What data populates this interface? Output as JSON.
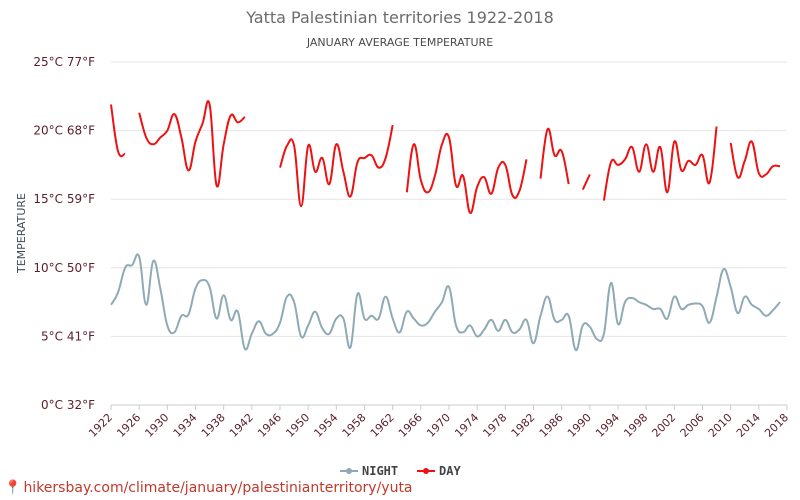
{
  "chart_data": {
    "type": "line",
    "title": "Yatta Palestinian territories 1922-2018",
    "subtitle": "JANUARY AVERAGE TEMPERATURE",
    "ylabel": "TEMPERATURE",
    "xlabel": "",
    "ylim": [
      0,
      25
    ],
    "xlim": [
      1922,
      2018
    ],
    "yticks": [
      "0°C 32°F",
      "5°C 41°F",
      "10°C 50°F",
      "15°C 59°F",
      "20°C 68°F",
      "25°C 77°F"
    ],
    "ytick_values": [
      0,
      5,
      10,
      15,
      20,
      25
    ],
    "xticks": [
      "1922",
      "1926",
      "1930",
      "1934",
      "1938",
      "1942",
      "1946",
      "1950",
      "1954",
      "1958",
      "1962",
      "1966",
      "1970",
      "1974",
      "1978",
      "1982",
      "1986",
      "1990",
      "1994",
      "1998",
      "2002",
      "2006",
      "2010",
      "2014",
      "2018"
    ],
    "legend": [
      "NIGHT",
      "DAY"
    ],
    "legend_position": "bottom-center",
    "series": [
      {
        "name": "NIGHT",
        "color": "#8eaab4",
        "segments": [
          [
            [
              1922,
              7.3
            ],
            [
              1923,
              8.2
            ],
            [
              1924,
              10.0
            ],
            [
              1925,
              10.2
            ],
            [
              1926,
              10.8
            ],
            [
              1927,
              7.3
            ],
            [
              1928,
              10.5
            ],
            [
              1929,
              8.5
            ],
            [
              1930,
              5.8
            ],
            [
              1931,
              5.3
            ],
            [
              1932,
              6.5
            ],
            [
              1933,
              6.6
            ],
            [
              1934,
              8.5
            ],
            [
              1935,
              9.1
            ],
            [
              1936,
              8.6
            ],
            [
              1937,
              6.3
            ],
            [
              1938,
              8.0
            ],
            [
              1939,
              6.2
            ],
            [
              1940,
              6.8
            ],
            [
              1941,
              4.1
            ],
            [
              1942,
              5.2
            ],
            [
              1943,
              6.1
            ],
            [
              1944,
              5.2
            ],
            [
              1945,
              5.2
            ],
            [
              1946,
              6.0
            ],
            [
              1947,
              7.9
            ],
            [
              1948,
              7.5
            ],
            [
              1949,
              5.0
            ],
            [
              1950,
              5.8
            ],
            [
              1951,
              6.8
            ],
            [
              1952,
              5.6
            ],
            [
              1953,
              5.2
            ],
            [
              1954,
              6.3
            ],
            [
              1955,
              6.3
            ],
            [
              1956,
              4.2
            ],
            [
              1957,
              8.1
            ],
            [
              1958,
              6.3
            ],
            [
              1959,
              6.5
            ],
            [
              1960,
              6.3
            ],
            [
              1961,
              7.9
            ],
            [
              1962,
              6.3
            ],
            [
              1963,
              5.3
            ],
            [
              1964,
              6.8
            ],
            [
              1965,
              6.3
            ],
            [
              1966,
              5.8
            ],
            [
              1967,
              6.0
            ],
            [
              1968,
              6.8
            ],
            [
              1969,
              7.5
            ],
            [
              1970,
              8.6
            ],
            [
              1971,
              5.8
            ],
            [
              1972,
              5.3
            ],
            [
              1973,
              5.8
            ],
            [
              1974,
              5.0
            ],
            [
              1975,
              5.5
            ],
            [
              1976,
              6.2
            ],
            [
              1977,
              5.4
            ],
            [
              1978,
              6.2
            ],
            [
              1979,
              5.3
            ],
            [
              1980,
              5.5
            ],
            [
              1981,
              6.2
            ],
            [
              1982,
              4.5
            ],
            [
              1983,
              6.5
            ],
            [
              1984,
              7.9
            ],
            [
              1985,
              6.2
            ],
            [
              1986,
              6.2
            ],
            [
              1987,
              6.5
            ],
            [
              1988,
              4.0
            ],
            [
              1989,
              5.8
            ],
            [
              1990,
              5.7
            ],
            [
              1991,
              4.8
            ],
            [
              1992,
              5.2
            ],
            [
              1993,
              8.9
            ],
            [
              1994,
              5.9
            ],
            [
              1995,
              7.5
            ],
            [
              1996,
              7.8
            ],
            [
              1997,
              7.5
            ],
            [
              1998,
              7.3
            ],
            [
              1999,
              7.0
            ],
            [
              2000,
              7.0
            ],
            [
              2001,
              6.3
            ],
            [
              2002,
              7.9
            ],
            [
              2003,
              7.0
            ],
            [
              2004,
              7.3
            ],
            [
              2005,
              7.4
            ],
            [
              2006,
              7.2
            ],
            [
              2007,
              6.0
            ],
            [
              2008,
              7.9
            ],
            [
              2009,
              9.9
            ],
            [
              2010,
              8.6
            ],
            [
              2011,
              6.7
            ],
            [
              2012,
              7.9
            ],
            [
              2013,
              7.3
            ],
            [
              2014,
              7.0
            ],
            [
              2015,
              6.5
            ],
            [
              2016,
              6.9
            ],
            [
              2017,
              7.5
            ]
          ]
        ]
      },
      {
        "name": "DAY",
        "color": "#ee1111",
        "segments": [
          [
            [
              1922,
              21.9
            ],
            [
              1923,
              18.5
            ],
            [
              1924,
              18.3
            ]
          ],
          [
            [
              1926,
              21.3
            ],
            [
              1927,
              19.5
            ],
            [
              1928,
              19.0
            ],
            [
              1929,
              19.5
            ],
            [
              1930,
              20.0
            ],
            [
              1931,
              21.2
            ],
            [
              1932,
              19.5
            ],
            [
              1933,
              17.1
            ],
            [
              1934,
              19.2
            ],
            [
              1935,
              20.5
            ],
            [
              1936,
              21.9
            ],
            [
              1937,
              16.0
            ],
            [
              1938,
              19.0
            ],
            [
              1939,
              21.1
            ],
            [
              1940,
              20.6
            ],
            [
              1941,
              21.0
            ]
          ],
          [
            [
              1946,
              17.3
            ],
            [
              1947,
              18.9
            ],
            [
              1948,
              18.9
            ],
            [
              1949,
              14.5
            ],
            [
              1950,
              18.9
            ],
            [
              1951,
              17.0
            ],
            [
              1952,
              18.0
            ],
            [
              1953,
              16.1
            ],
            [
              1954,
              19.0
            ],
            [
              1955,
              17.0
            ],
            [
              1956,
              15.2
            ],
            [
              1957,
              17.7
            ],
            [
              1958,
              18.0
            ],
            [
              1959,
              18.2
            ],
            [
              1960,
              17.3
            ],
            [
              1961,
              18.0
            ],
            [
              1962,
              20.4
            ]
          ],
          [
            [
              1964,
              15.5
            ],
            [
              1965,
              19.0
            ],
            [
              1966,
              16.4
            ],
            [
              1967,
              15.5
            ],
            [
              1968,
              16.7
            ],
            [
              1969,
              19.0
            ],
            [
              1970,
              19.5
            ],
            [
              1971,
              16.0
            ],
            [
              1972,
              16.7
            ],
            [
              1973,
              14.0
            ],
            [
              1974,
              15.9
            ],
            [
              1975,
              16.6
            ],
            [
              1976,
              15.4
            ],
            [
              1977,
              17.3
            ],
            [
              1978,
              17.5
            ],
            [
              1979,
              15.3
            ],
            [
              1980,
              15.6
            ],
            [
              1981,
              17.9
            ]
          ],
          [
            [
              1983,
              16.5
            ],
            [
              1984,
              20.1
            ],
            [
              1985,
              18.2
            ],
            [
              1986,
              18.5
            ],
            [
              1987,
              16.1
            ]
          ],
          [
            [
              1989,
              15.7
            ],
            [
              1990,
              16.8
            ]
          ],
          [
            [
              1992,
              14.9
            ],
            [
              1993,
              17.7
            ],
            [
              1994,
              17.5
            ],
            [
              1995,
              17.9
            ],
            [
              1996,
              18.8
            ],
            [
              1997,
              17.0
            ],
            [
              1998,
              19.0
            ],
            [
              1999,
              17.0
            ],
            [
              2000,
              18.8
            ],
            [
              2001,
              15.5
            ],
            [
              2002,
              19.2
            ],
            [
              2003,
              17.1
            ],
            [
              2004,
              17.8
            ],
            [
              2005,
              17.5
            ],
            [
              2006,
              18.2
            ],
            [
              2007,
              16.2
            ],
            [
              2008,
              20.3
            ]
          ],
          [
            [
              2010,
              19.1
            ],
            [
              2011,
              16.6
            ],
            [
              2012,
              17.8
            ],
            [
              2013,
              19.2
            ],
            [
              2014,
              16.9
            ],
            [
              2015,
              16.8
            ],
            [
              2016,
              17.4
            ],
            [
              2017,
              17.4
            ]
          ]
        ]
      }
    ]
  },
  "footer": {
    "pin_icon": "map-pin-icon",
    "url": "hikersbay.com/climate/january/palestinianterritory/yuta"
  }
}
